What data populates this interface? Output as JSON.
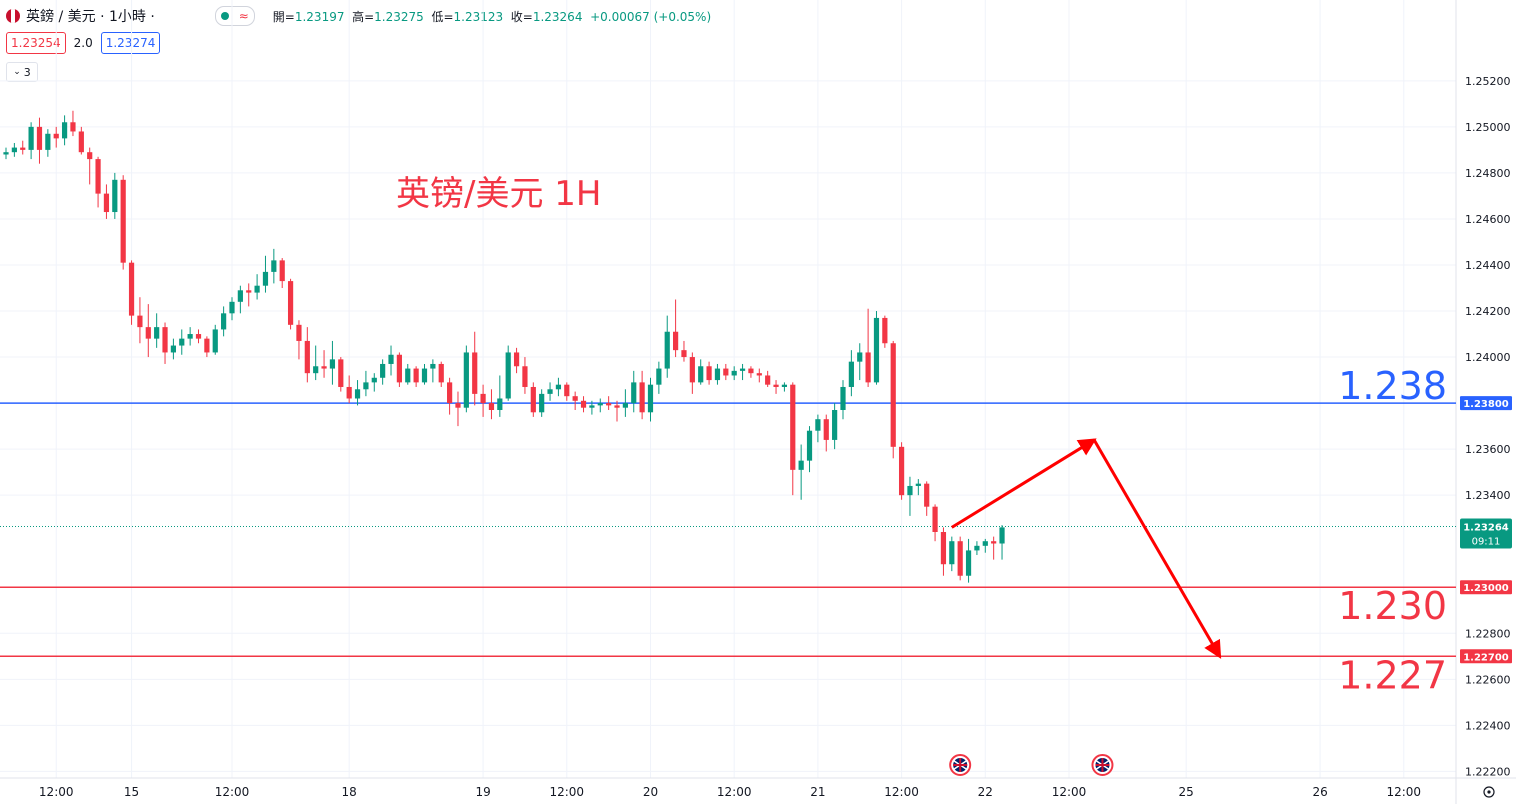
{
  "header": {
    "symbol": "英鎊 / 美元 · 1小時 ·",
    "wave_icon": "≈",
    "open_label": "開=",
    "open": "1.23197",
    "high_label": "高=",
    "high": "1.23275",
    "low_label": "低=",
    "low": "1.23123",
    "close_label": "收=",
    "close": "1.23264",
    "change": "+0.00067 (+0.05%)"
  },
  "price_row": {
    "sell": "1.23254",
    "spread": "2.0",
    "buy": "1.23274"
  },
  "indicator_toggle": "3",
  "icons": [
    "gbp-flag-icon",
    "chevron-down-icon",
    "settings-icon",
    "uk-event-icon"
  ],
  "colors": {
    "up": "#089981",
    "down": "#f23645",
    "blue_line": "#2962ff",
    "red_line": "#f23645",
    "arrow": "#ff0000"
  },
  "chart_data": {
    "type": "candlestick",
    "title": "英镑/美元 1H",
    "ylim": [
      1.2218,
      1.2536
    ],
    "y_ticks": [
      "1.25200",
      "1.25000",
      "1.24800",
      "1.24600",
      "1.24400",
      "1.24200",
      "1.24000",
      "1.23600",
      "1.23400",
      "1.22800",
      "1.22600",
      "1.22400",
      "1.22200"
    ],
    "x_ticks": [
      {
        "label": "12:00",
        "bar": 6
      },
      {
        "label": "15",
        "bar": 15
      },
      {
        "label": "12:00",
        "bar": 27
      },
      {
        "label": "18",
        "bar": 41
      },
      {
        "label": "19",
        "bar": 57
      },
      {
        "label": "12:00",
        "bar": 67
      },
      {
        "label": "20",
        "bar": 77
      },
      {
        "label": "12:00",
        "bar": 87
      },
      {
        "label": "21",
        "bar": 97
      },
      {
        "label": "12:00",
        "bar": 107
      },
      {
        "label": "22",
        "bar": 117
      },
      {
        "label": "12:00",
        "bar": 127
      },
      {
        "label": "25",
        "bar": 141
      },
      {
        "label": "26",
        "bar": 157
      },
      {
        "label": "12:00",
        "bar": 167
      }
    ],
    "candles": [
      [
        1.2488,
        1.2491,
        1.2486,
        1.2489
      ],
      [
        1.2489,
        1.2493,
        1.2487,
        1.2491
      ],
      [
        1.2491,
        1.2494,
        1.2488,
        1.249
      ],
      [
        1.249,
        1.2502,
        1.2486,
        1.25
      ],
      [
        1.25,
        1.2504,
        1.2484,
        1.249
      ],
      [
        1.249,
        1.2499,
        1.2487,
        1.2497
      ],
      [
        1.2497,
        1.25,
        1.2491,
        1.2495
      ],
      [
        1.2495,
        1.2505,
        1.2492,
        1.2502
      ],
      [
        1.2502,
        1.2507,
        1.2496,
        1.2498
      ],
      [
        1.2498,
        1.25,
        1.2488,
        1.2489
      ],
      [
        1.2489,
        1.2491,
        1.2475,
        1.2486
      ],
      [
        1.2486,
        1.2487,
        1.2465,
        1.2471
      ],
      [
        1.2471,
        1.2475,
        1.246,
        1.2463
      ],
      [
        1.2463,
        1.248,
        1.246,
        1.2477
      ],
      [
        1.2477,
        1.2479,
        1.2438,
        1.2441
      ],
      [
        1.2441,
        1.2442,
        1.2414,
        1.2418
      ],
      [
        1.2418,
        1.2426,
        1.2406,
        1.2413
      ],
      [
        1.2413,
        1.2423,
        1.24,
        1.2408
      ],
      [
        1.2408,
        1.2419,
        1.2404,
        1.2413
      ],
      [
        1.2413,
        1.2415,
        1.2397,
        1.2402
      ],
      [
        1.2402,
        1.2408,
        1.2399,
        1.2405
      ],
      [
        1.2405,
        1.2412,
        1.2401,
        1.2408
      ],
      [
        1.2408,
        1.2413,
        1.2405,
        1.241
      ],
      [
        1.241,
        1.2412,
        1.2406,
        1.2408
      ],
      [
        1.2408,
        1.2409,
        1.24,
        1.2402
      ],
      [
        1.2402,
        1.2414,
        1.2401,
        1.2412
      ],
      [
        1.2412,
        1.2422,
        1.2409,
        1.2419
      ],
      [
        1.2419,
        1.2426,
        1.2416,
        1.2424
      ],
      [
        1.2424,
        1.2431,
        1.2419,
        1.2429
      ],
      [
        1.2429,
        1.2432,
        1.2422,
        1.2428
      ],
      [
        1.2428,
        1.2436,
        1.2425,
        1.2431
      ],
      [
        1.2431,
        1.2444,
        1.2428,
        1.2437
      ],
      [
        1.2437,
        1.2447,
        1.2432,
        1.2442
      ],
      [
        1.2442,
        1.2443,
        1.243,
        1.2433
      ],
      [
        1.2433,
        1.2434,
        1.2412,
        1.2414
      ],
      [
        1.2414,
        1.2416,
        1.2399,
        1.2407
      ],
      [
        1.2407,
        1.2413,
        1.2389,
        1.2393
      ],
      [
        1.2393,
        1.2405,
        1.239,
        1.2396
      ],
      [
        1.2396,
        1.2403,
        1.2391,
        1.2395
      ],
      [
        1.2395,
        1.2407,
        1.2388,
        1.2399
      ],
      [
        1.2399,
        1.24,
        1.2385,
        1.2387
      ],
      [
        1.2387,
        1.2392,
        1.238,
        1.2382
      ],
      [
        1.2382,
        1.239,
        1.2379,
        1.2386
      ],
      [
        1.2386,
        1.2394,
        1.2383,
        1.2389
      ],
      [
        1.2389,
        1.2393,
        1.2385,
        1.2391
      ],
      [
        1.2391,
        1.2399,
        1.2388,
        1.2397
      ],
      [
        1.2397,
        1.2405,
        1.2392,
        1.2401
      ],
      [
        1.2401,
        1.2402,
        1.2387,
        1.2389
      ],
      [
        1.2389,
        1.2397,
        1.2388,
        1.2395
      ],
      [
        1.2395,
        1.2396,
        1.2387,
        1.2389
      ],
      [
        1.2389,
        1.2397,
        1.2388,
        1.2395
      ],
      [
        1.2395,
        1.2399,
        1.2389,
        1.2397
      ],
      [
        1.2397,
        1.2398,
        1.2387,
        1.2389
      ],
      [
        1.2389,
        1.2391,
        1.2375,
        1.238
      ],
      [
        1.238,
        1.2385,
        1.237,
        1.2378
      ],
      [
        1.2378,
        1.2405,
        1.2376,
        1.2402
      ],
      [
        1.2402,
        1.2411,
        1.2379,
        1.2384
      ],
      [
        1.2384,
        1.2388,
        1.2374,
        1.238
      ],
      [
        1.238,
        1.2386,
        1.2373,
        1.2377
      ],
      [
        1.2377,
        1.2392,
        1.2374,
        1.2382
      ],
      [
        1.2382,
        1.2405,
        1.2381,
        1.2402
      ],
      [
        1.2402,
        1.2404,
        1.2393,
        1.2396
      ],
      [
        1.2396,
        1.24,
        1.2384,
        1.2387
      ],
      [
        1.2387,
        1.2389,
        1.2374,
        1.2376
      ],
      [
        1.2376,
        1.2386,
        1.2374,
        1.2384
      ],
      [
        1.2384,
        1.2389,
        1.2381,
        1.2386
      ],
      [
        1.2386,
        1.2391,
        1.2383,
        1.2388
      ],
      [
        1.2388,
        1.2389,
        1.2381,
        1.2383
      ],
      [
        1.2383,
        1.2385,
        1.2377,
        1.2381
      ],
      [
        1.2381,
        1.2383,
        1.2376,
        1.2378
      ],
      [
        1.2378,
        1.2381,
        1.2375,
        1.2379
      ],
      [
        1.2379,
        1.2382,
        1.2376,
        1.238
      ],
      [
        1.238,
        1.2383,
        1.2377,
        1.2379
      ],
      [
        1.2379,
        1.2381,
        1.2372,
        1.2378
      ],
      [
        1.2378,
        1.2386,
        1.2374,
        1.238
      ],
      [
        1.238,
        1.2394,
        1.2376,
        1.2389
      ],
      [
        1.2389,
        1.2394,
        1.2373,
        1.2376
      ],
      [
        1.2376,
        1.2391,
        1.2372,
        1.2388
      ],
      [
        1.2388,
        1.2398,
        1.2384,
        1.2395
      ],
      [
        1.2395,
        1.2418,
        1.2391,
        1.2411
      ],
      [
        1.2411,
        1.2425,
        1.24,
        1.2403
      ],
      [
        1.2403,
        1.2407,
        1.2398,
        1.24
      ],
      [
        1.24,
        1.2402,
        1.2384,
        1.2389
      ],
      [
        1.2389,
        1.2399,
        1.2388,
        1.2396
      ],
      [
        1.2396,
        1.2398,
        1.2388,
        1.239
      ],
      [
        1.239,
        1.2397,
        1.2388,
        1.2395
      ],
      [
        1.2395,
        1.2397,
        1.239,
        1.2392
      ],
      [
        1.2392,
        1.2396,
        1.239,
        1.2394
      ],
      [
        1.2394,
        1.2397,
        1.239,
        1.2395
      ],
      [
        1.2395,
        1.2396,
        1.2391,
        1.2393
      ],
      [
        1.2393,
        1.2395,
        1.2389,
        1.2392
      ],
      [
        1.2392,
        1.2394,
        1.2387,
        1.2388
      ],
      [
        1.2388,
        1.239,
        1.2384,
        1.2387
      ],
      [
        1.2387,
        1.2389,
        1.2385,
        1.2388
      ],
      [
        1.2388,
        1.2389,
        1.234,
        1.2351
      ],
      [
        1.2351,
        1.2362,
        1.2338,
        1.2355
      ],
      [
        1.2355,
        1.237,
        1.235,
        1.2368
      ],
      [
        1.2368,
        1.2375,
        1.2363,
        1.2373
      ],
      [
        1.2373,
        1.2375,
        1.2359,
        1.2364
      ],
      [
        1.2364,
        1.238,
        1.236,
        1.2377
      ],
      [
        1.2377,
        1.239,
        1.2373,
        1.2387
      ],
      [
        1.2387,
        1.2403,
        1.2383,
        1.2398
      ],
      [
        1.2398,
        1.2406,
        1.239,
        1.2402
      ],
      [
        1.2402,
        1.2421,
        1.2387,
        1.2389
      ],
      [
        1.2389,
        1.242,
        1.2388,
        1.2417
      ],
      [
        1.2417,
        1.2418,
        1.2404,
        1.2406
      ],
      [
        1.2406,
        1.2407,
        1.2356,
        1.2361
      ],
      [
        1.2361,
        1.2363,
        1.2338,
        1.234
      ],
      [
        1.234,
        1.2348,
        1.2331,
        1.2344
      ],
      [
        1.2344,
        1.2347,
        1.234,
        1.2345
      ],
      [
        1.2345,
        1.2346,
        1.2331,
        1.2335
      ],
      [
        1.2335,
        1.2336,
        1.232,
        1.2324
      ],
      [
        1.2324,
        1.2326,
        1.2305,
        1.231
      ],
      [
        1.231,
        1.2322,
        1.2307,
        1.232
      ],
      [
        1.232,
        1.2322,
        1.2303,
        1.2305
      ],
      [
        1.2305,
        1.2321,
        1.2302,
        1.2316
      ],
      [
        1.2316,
        1.232,
        1.2314,
        1.2318
      ],
      [
        1.2318,
        1.2321,
        1.2315,
        1.232
      ],
      [
        1.232,
        1.2322,
        1.2312,
        1.2319
      ],
      [
        1.2319,
        1.2327,
        1.2312,
        1.2326
      ]
    ],
    "horizontal_lines": [
      {
        "label": "1.238",
        "axis_label": "1.23800",
        "price": 1.238,
        "color": "#2962ff"
      },
      {
        "label": "1.230",
        "axis_label": "1.23000",
        "price": 1.23,
        "color": "#f23645"
      },
      {
        "label": "1.227",
        "axis_label": "1.22700",
        "price": 1.227,
        "color": "#f23645"
      }
    ],
    "current_price": {
      "label": "1.23264",
      "price": 1.23264,
      "countdown": "09:11"
    },
    "projection_arrows": [
      {
        "from": {
          "bar": 113,
          "price": 1.2326
        },
        "to": {
          "bar": 130,
          "price": 1.2364
        }
      },
      {
        "from": {
          "bar": 130,
          "price": 1.2364
        },
        "to": {
          "bar": 145,
          "price": 1.227
        }
      }
    ],
    "event_markers": [
      {
        "bar": 114
      },
      {
        "bar": 131
      }
    ]
  }
}
